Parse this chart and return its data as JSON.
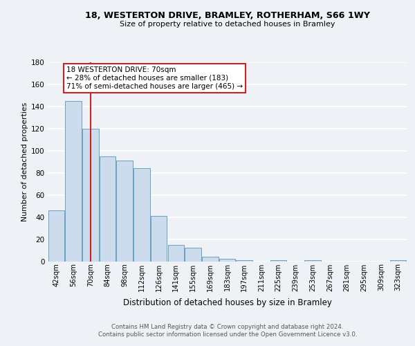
{
  "title1": "18, WESTERTON DRIVE, BRAMLEY, ROTHERHAM, S66 1WY",
  "title2": "Size of property relative to detached houses in Bramley",
  "xlabel": "Distribution of detached houses by size in Bramley",
  "ylabel": "Number of detached properties",
  "categories": [
    "42sqm",
    "56sqm",
    "70sqm",
    "84sqm",
    "98sqm",
    "112sqm",
    "126sqm",
    "141sqm",
    "155sqm",
    "169sqm",
    "183sqm",
    "197sqm",
    "211sqm",
    "225sqm",
    "239sqm",
    "253sqm",
    "267sqm",
    "281sqm",
    "295sqm",
    "309sqm",
    "323sqm"
  ],
  "bar_values": [
    46,
    145,
    120,
    95,
    91,
    84,
    41,
    15,
    12,
    4,
    2,
    1,
    0,
    1,
    0,
    1,
    0,
    0,
    0,
    0,
    1
  ],
  "bar_color": "#cddcec",
  "bar_edge_color": "#6a9fc0",
  "vline_x_idx": 2,
  "vline_color": "#cc2222",
  "annotation_text": "18 WESTERTON DRIVE: 70sqm\n← 28% of detached houses are smaller (183)\n71% of semi-detached houses are larger (465) →",
  "annotation_box_color": "#ffffff",
  "annotation_box_edge": "#cc2222",
  "ylim": [
    0,
    180
  ],
  "yticks": [
    0,
    20,
    40,
    60,
    80,
    100,
    120,
    140,
    160,
    180
  ],
  "footer1": "Contains HM Land Registry data © Crown copyright and database right 2024.",
  "footer2": "Contains public sector information licensed under the Open Government Licence v3.0.",
  "bg_color": "#eef2f7",
  "grid_color": "#ffffff"
}
